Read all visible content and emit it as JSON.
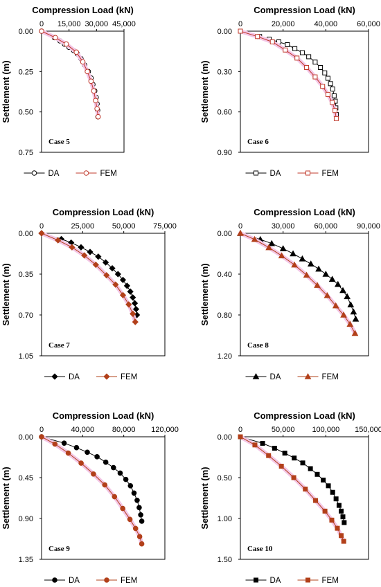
{
  "chart_data": [
    {
      "type": "scatter",
      "title": "",
      "xlabel": "Compression Load (kN)",
      "ylabel": "Settlement (m)",
      "xlim": [
        0,
        45000
      ],
      "ylim": [
        0,
        0.75
      ],
      "x_ticks": [
        "0",
        "15,000",
        "30,000",
        "45,000"
      ],
      "y_ticks": [
        "0.00",
        "0.25",
        "0.50",
        "0.75"
      ],
      "y_inverted": true,
      "annotation": "Case 5",
      "legend": "bottom",
      "series": [
        {
          "name": "DA",
          "marker": "circle-open",
          "color": "#000000",
          "points": [
            [
              0,
              0
            ],
            [
              7000,
              0.04
            ],
            [
              10000,
              0.06
            ],
            [
              12500,
              0.08
            ],
            [
              15000,
              0.1
            ],
            [
              17500,
              0.12
            ],
            [
              19500,
              0.14
            ],
            [
              21500,
              0.17
            ],
            [
              23500,
              0.21
            ],
            [
              25500,
              0.25
            ],
            [
              27000,
              0.29
            ],
            [
              28000,
              0.33
            ],
            [
              29000,
              0.37
            ],
            [
              29800,
              0.41
            ],
            [
              30300,
              0.45
            ],
            [
              30600,
              0.49
            ],
            [
              30800,
              0.53
            ]
          ]
        },
        {
          "name": "FEM",
          "marker": "circle-open",
          "color": "#c0392b",
          "points": [
            [
              0,
              0
            ],
            [
              7500,
              0.04
            ],
            [
              13500,
              0.08
            ],
            [
              19000,
              0.13
            ],
            [
              22500,
              0.19
            ],
            [
              25000,
              0.25
            ],
            [
              27000,
              0.31
            ],
            [
              28500,
              0.37
            ],
            [
              29500,
              0.43
            ],
            [
              30300,
              0.48
            ],
            [
              30900,
              0.53
            ]
          ]
        }
      ]
    },
    {
      "type": "scatter",
      "title": "",
      "xlabel": "Compression Load (kN)",
      "ylabel": "Settlement (m)",
      "xlim": [
        0,
        60000
      ],
      "ylim": [
        0,
        0.9
      ],
      "x_ticks": [
        "0",
        "20,000",
        "40,000",
        "60,000"
      ],
      "y_ticks": [
        "0.00",
        "0.30",
        "0.60",
        "0.90"
      ],
      "y_inverted": true,
      "annotation": "Case 6",
      "legend": "bottom",
      "series": [
        {
          "name": "DA",
          "marker": "square-open",
          "color": "#000000",
          "points": [
            [
              0,
              0
            ],
            [
              9000,
              0.04
            ],
            [
              13500,
              0.06
            ],
            [
              18000,
              0.08
            ],
            [
              22000,
              0.1
            ],
            [
              25500,
              0.13
            ],
            [
              29000,
              0.16
            ],
            [
              32000,
              0.19
            ],
            [
              35000,
              0.23
            ],
            [
              37500,
              0.27
            ],
            [
              39500,
              0.31
            ],
            [
              41000,
              0.35
            ],
            [
              42200,
              0.39
            ],
            [
              43200,
              0.43
            ],
            [
              43900,
              0.48
            ],
            [
              44400,
              0.52
            ],
            [
              44700,
              0.57
            ],
            [
              44900,
              0.62
            ]
          ]
        },
        {
          "name": "FEM",
          "marker": "square-open",
          "color": "#c0392b",
          "points": [
            [
              0,
              0
            ],
            [
              8000,
              0.04
            ],
            [
              15000,
              0.08
            ],
            [
              21000,
              0.14
            ],
            [
              26500,
              0.2
            ],
            [
              31000,
              0.27
            ],
            [
              35000,
              0.34
            ],
            [
              38500,
              0.41
            ],
            [
              41000,
              0.47
            ],
            [
              43000,
              0.53
            ],
            [
              44300,
              0.59
            ],
            [
              44900,
              0.65
            ]
          ]
        }
      ]
    },
    {
      "type": "scatter",
      "title": "",
      "xlabel": "Compression Load (kN)",
      "ylabel": "Settlement (m)",
      "xlim": [
        0,
        75000
      ],
      "ylim": [
        0,
        1.05
      ],
      "x_ticks": [
        "0",
        "25,000",
        "50,000",
        "75,000"
      ],
      "y_ticks": [
        "0.00",
        "0.35",
        "0.70",
        "1.05"
      ],
      "y_inverted": true,
      "annotation": "Case 7",
      "legend": "bottom",
      "series": [
        {
          "name": "DA",
          "marker": "diamond-filled",
          "color": "#000000",
          "points": [
            [
              0,
              0
            ],
            [
              12000,
              0.05
            ],
            [
              18000,
              0.08
            ],
            [
              24000,
              0.12
            ],
            [
              29500,
              0.16
            ],
            [
              34500,
              0.2
            ],
            [
              39000,
              0.25
            ],
            [
              43000,
              0.3
            ],
            [
              46500,
              0.35
            ],
            [
              49500,
              0.4
            ],
            [
              52000,
              0.45
            ],
            [
              54000,
              0.5
            ],
            [
              55500,
              0.55
            ],
            [
              56700,
              0.6
            ],
            [
              57500,
              0.65
            ],
            [
              58000,
              0.7
            ]
          ]
        },
        {
          "name": "FEM",
          "marker": "diamond-filled",
          "color": "#b2401a",
          "points": [
            [
              0,
              0
            ],
            [
              10000,
              0.06
            ],
            [
              18500,
              0.12
            ],
            [
              26000,
              0.19
            ],
            [
              33000,
              0.27
            ],
            [
              39500,
              0.36
            ],
            [
              45000,
              0.44
            ],
            [
              49500,
              0.53
            ],
            [
              53000,
              0.61
            ],
            [
              55500,
              0.69
            ],
            [
              57000,
              0.76
            ]
          ]
        }
      ]
    },
    {
      "type": "scatter",
      "title": "",
      "xlabel": "Compression Load (kN)",
      "ylabel": "Settlement (m)",
      "xlim": [
        0,
        90000
      ],
      "ylim": [
        0,
        1.2
      ],
      "x_ticks": [
        "0",
        "30,000",
        "60,000",
        "90,000"
      ],
      "y_ticks": [
        "0.00",
        "0.40",
        "0.80",
        "1.20"
      ],
      "y_inverted": true,
      "annotation": "Case 8",
      "legend": "bottom",
      "series": [
        {
          "name": "DA",
          "marker": "triangle-filled",
          "color": "#000000",
          "points": [
            [
              0,
              0
            ],
            [
              14000,
              0.06
            ],
            [
              22000,
              0.1
            ],
            [
              30000,
              0.15
            ],
            [
              37000,
              0.2
            ],
            [
              43500,
              0.25
            ],
            [
              49500,
              0.3
            ],
            [
              55000,
              0.35
            ],
            [
              60000,
              0.4
            ],
            [
              64500,
              0.45
            ],
            [
              68500,
              0.5
            ],
            [
              72000,
              0.56
            ],
            [
              75000,
              0.62
            ],
            [
              77500,
              0.7
            ],
            [
              79500,
              0.77
            ],
            [
              81000,
              0.84
            ]
          ]
        },
        {
          "name": "FEM",
          "marker": "triangle-filled",
          "color": "#b2401a",
          "points": [
            [
              0,
              0
            ],
            [
              10000,
              0.06
            ],
            [
              20000,
              0.14
            ],
            [
              29000,
              0.22
            ],
            [
              38000,
              0.31
            ],
            [
              46500,
              0.41
            ],
            [
              54000,
              0.51
            ],
            [
              61000,
              0.61
            ],
            [
              67000,
              0.71
            ],
            [
              72500,
              0.8
            ],
            [
              77000,
              0.89
            ],
            [
              80500,
              0.98
            ]
          ]
        }
      ]
    },
    {
      "type": "scatter",
      "title": "",
      "xlabel": "Compression Load (kN)",
      "ylabel": "Settlement (m)",
      "xlim": [
        0,
        120000
      ],
      "ylim": [
        0,
        1.35
      ],
      "x_ticks": [
        "0",
        "40,000",
        "80,000",
        "120,000"
      ],
      "y_ticks": [
        "0.00",
        "0.45",
        "0.90",
        "1.35"
      ],
      "y_inverted": true,
      "annotation": "Case 9",
      "legend": "bottom",
      "series": [
        {
          "name": "DA",
          "marker": "circle-filled",
          "color": "#000000",
          "points": [
            [
              0,
              0
            ],
            [
              22000,
              0.07
            ],
            [
              34000,
              0.12
            ],
            [
              44500,
              0.17
            ],
            [
              54000,
              0.22
            ],
            [
              62500,
              0.28
            ],
            [
              70000,
              0.34
            ],
            [
              76500,
              0.4
            ],
            [
              82000,
              0.47
            ],
            [
              86500,
              0.54
            ],
            [
              90000,
              0.62
            ],
            [
              93000,
              0.7
            ],
            [
              95000,
              0.78
            ],
            [
              96500,
              0.86
            ],
            [
              97500,
              0.93
            ]
          ]
        },
        {
          "name": "FEM",
          "marker": "circle-filled",
          "color": "#b2401a",
          "points": [
            [
              0,
              0
            ],
            [
              13000,
              0.08
            ],
            [
              26000,
              0.18
            ],
            [
              38500,
              0.29
            ],
            [
              50500,
              0.41
            ],
            [
              61500,
              0.53
            ],
            [
              71000,
              0.66
            ],
            [
              79000,
              0.79
            ],
            [
              86000,
              0.91
            ],
            [
              91500,
              1.01
            ],
            [
              95500,
              1.1
            ],
            [
              97500,
              1.18
            ]
          ]
        }
      ]
    },
    {
      "type": "scatter",
      "title": "",
      "xlabel": "Compression Load (kN)",
      "ylabel": "Settlement (m)",
      "xlim": [
        0,
        150000
      ],
      "ylim": [
        0,
        1.5
      ],
      "x_ticks": [
        "0",
        "50,000",
        "100,000",
        "150,000"
      ],
      "y_ticks": [
        "0.00",
        "0.50",
        "1.00",
        "1.50"
      ],
      "y_inverted": true,
      "annotation": "Case 10",
      "legend": "bottom",
      "series": [
        {
          "name": "DA",
          "marker": "square-filled",
          "color": "#000000",
          "points": [
            [
              0,
              0
            ],
            [
              26000,
              0.08
            ],
            [
              40000,
              0.14
            ],
            [
              52000,
              0.2
            ],
            [
              63000,
              0.26
            ],
            [
              73000,
              0.32
            ],
            [
              82000,
              0.39
            ],
            [
              90000,
              0.46
            ],
            [
              97000,
              0.53
            ],
            [
              103000,
              0.6
            ],
            [
              108000,
              0.68
            ],
            [
              112000,
              0.76
            ],
            [
              115500,
              0.84
            ],
            [
              118000,
              0.91
            ],
            [
              120000,
              0.98
            ],
            [
              121500,
              1.05
            ]
          ]
        },
        {
          "name": "FEM",
          "marker": "square-filled",
          "color": "#b2401a",
          "points": [
            [
              0,
              0
            ],
            [
              17000,
              0.1
            ],
            [
              33000,
              0.23
            ],
            [
              48000,
              0.36
            ],
            [
              62500,
              0.5
            ],
            [
              76000,
              0.64
            ],
            [
              88000,
              0.78
            ],
            [
              99000,
              0.91
            ],
            [
              107000,
              1.02
            ],
            [
              113500,
              1.12
            ],
            [
              118000,
              1.21
            ],
            [
              121000,
              1.28
            ]
          ]
        }
      ]
    }
  ]
}
